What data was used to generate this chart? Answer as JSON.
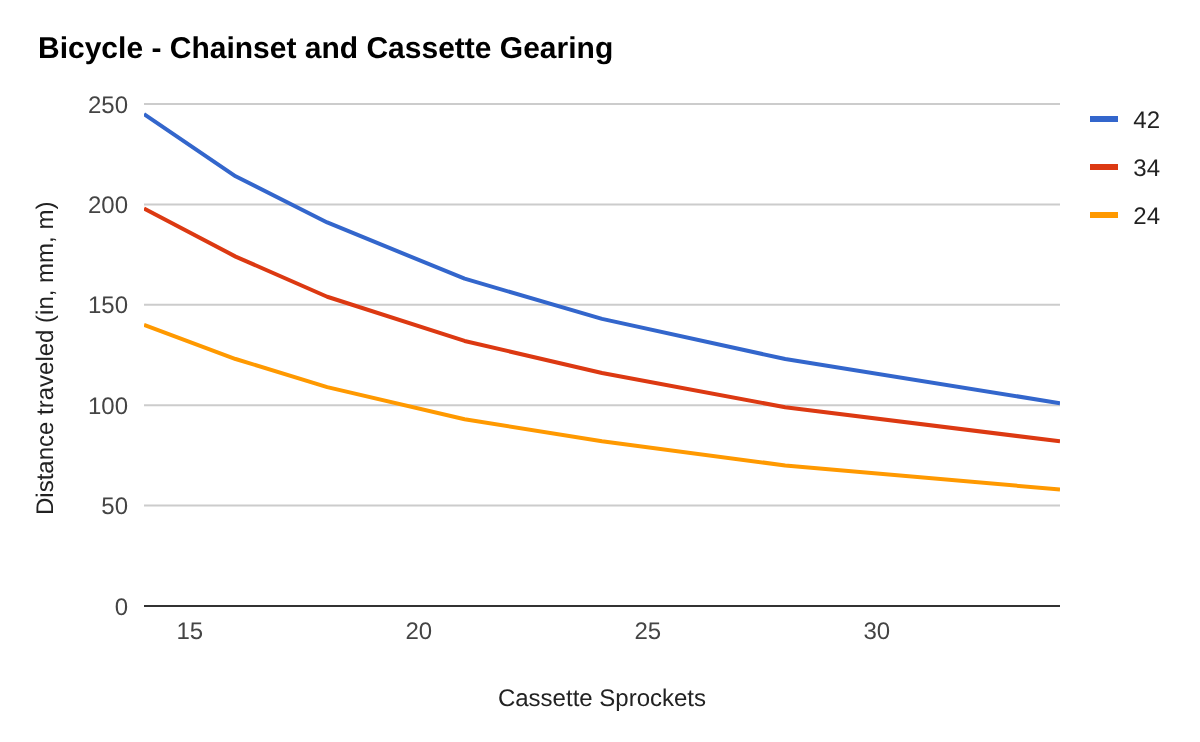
{
  "chart_data": {
    "type": "line",
    "title": "Bicycle - Chainset and Cassette Gearing",
    "xlabel": "Cassette Sprockets",
    "ylabel": "Distance traveled (in, mm, m)",
    "x": [
      14,
      16,
      18,
      21,
      24,
      28,
      34
    ],
    "series": [
      {
        "name": "42",
        "color": "#3366cc",
        "values": [
          245,
          214,
          191,
          163,
          143,
          123,
          101
        ]
      },
      {
        "name": "34",
        "color": "#dc3912",
        "values": [
          198,
          174,
          154,
          132,
          116,
          99,
          82
        ]
      },
      {
        "name": "24",
        "color": "#ff9900",
        "values": [
          140,
          123,
          109,
          93,
          82,
          70,
          58
        ]
      }
    ],
    "xlim": [
      14,
      34
    ],
    "xticks": [
      15,
      20,
      25,
      30
    ],
    "ylim": [
      0,
      250
    ],
    "yticks": [
      0,
      50,
      100,
      150,
      200,
      250
    ],
    "grid": "y",
    "legend": "top right",
    "marker": "none",
    "line_style": "solid"
  }
}
